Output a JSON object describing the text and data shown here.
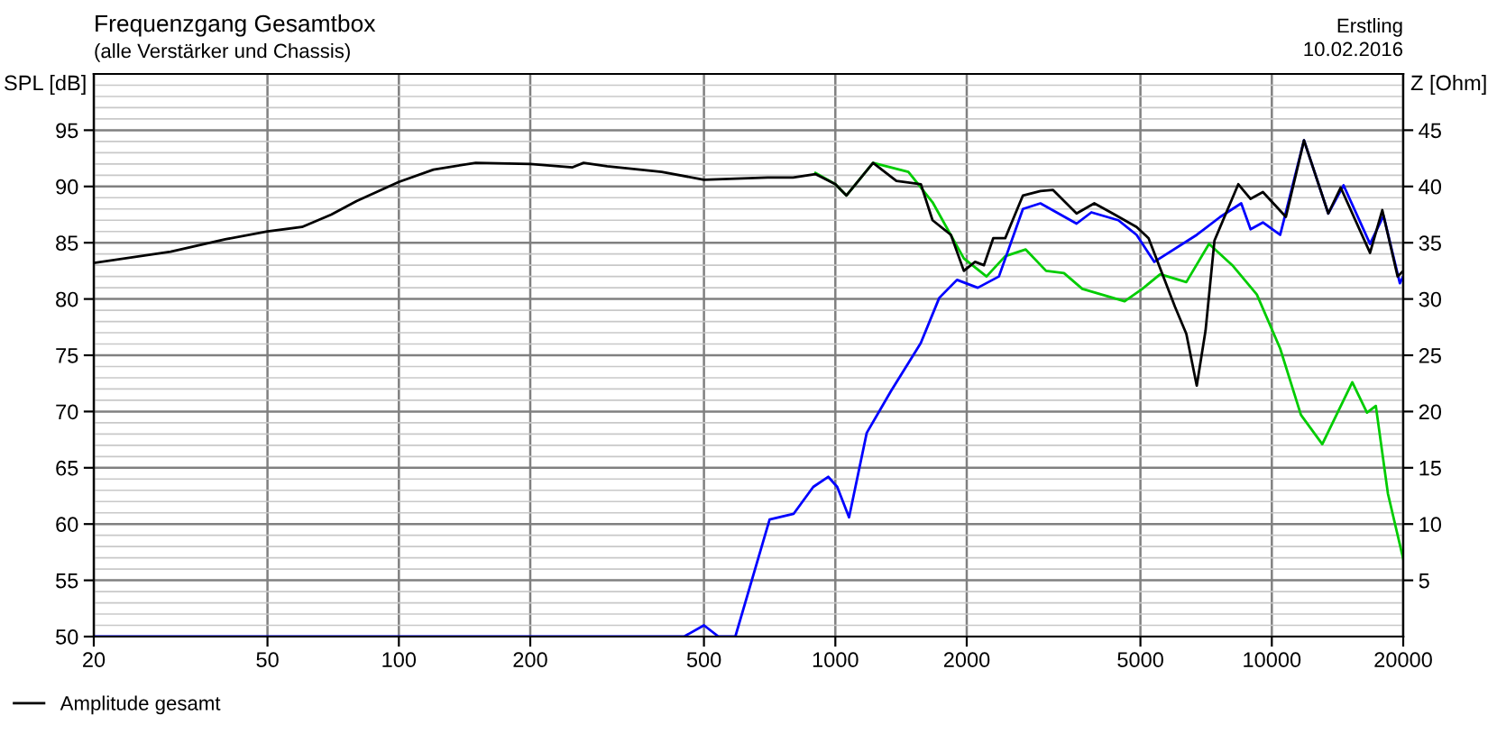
{
  "chart_data": {
    "type": "line",
    "title": "Frequenzgang Gesamtbox",
    "subtitle": "(alle Verstärker und Chassis)",
    "annotations": [
      "Erstling",
      "10.02.2016"
    ],
    "ylabel": "SPL [dB]",
    "y2label": "Z [Ohm]",
    "log": "x",
    "xlim": [
      20,
      20000
    ],
    "xticks": [
      20,
      50,
      100,
      200,
      500,
      1000,
      2000,
      5000,
      10000,
      20000
    ],
    "ylim": [
      50,
      100
    ],
    "yticks": [
      50,
      55,
      60,
      65,
      70,
      75,
      80,
      85,
      90,
      95
    ],
    "y2lim": [
      0,
      50
    ],
    "y2ticks": [
      5,
      10,
      15,
      20,
      25,
      30,
      35,
      40,
      45
    ],
    "grid": true,
    "legend": "bottom left",
    "marker": "none",
    "line_style": "solid",
    "series": [
      {
        "name": "Amplitude gesamt",
        "color": "#000000",
        "x": [
          20,
          30,
          40,
          50,
          60,
          70,
          80,
          100,
          120,
          150,
          200,
          250,
          265,
          300,
          400,
          500,
          700,
          800,
          900,
          1000,
          1060,
          1220,
          1380,
          1570,
          1670,
          1840,
          1970,
          2090,
          2190,
          2300,
          2450,
          2690,
          2950,
          3150,
          3570,
          3920,
          4320,
          4900,
          5220,
          6000,
          6370,
          6730,
          7050,
          7390,
          8380,
          8940,
          9540,
          10770,
          11850,
          13470,
          14380,
          16790,
          17910,
          19420,
          20000
        ],
        "values": [
          83.2,
          84.2,
          85.3,
          86.0,
          86.4,
          87.5,
          88.7,
          90.4,
          91.5,
          92.1,
          92.0,
          91.7,
          92.1,
          91.8,
          91.3,
          90.6,
          90.8,
          90.8,
          91.1,
          90.2,
          89.2,
          92.1,
          90.5,
          90.2,
          87.0,
          85.7,
          82.5,
          83.3,
          83.0,
          85.4,
          85.4,
          89.2,
          89.6,
          89.7,
          87.6,
          88.5,
          87.6,
          86.4,
          85.4,
          79.3,
          76.9,
          72.3,
          77.2,
          85.2,
          90.2,
          88.9,
          89.5,
          87.3,
          94.1,
          87.6,
          89.9,
          84.1,
          87.9,
          82.0,
          82.5
        ]
      },
      {
        "color": "#0000ff",
        "x": [
          20,
          450,
          500,
          540,
          590,
          707,
          802,
          890,
          963,
          1010,
          1075,
          1180,
          1340,
          1570,
          1730,
          1900,
          2120,
          2370,
          2690,
          2950,
          3570,
          3860,
          4450,
          4900,
          5380,
          6730,
          7620,
          8510,
          8940,
          9540,
          10450,
          11850,
          13470,
          14600,
          16790,
          18030,
          19650,
          20000
        ],
        "values": [
          50,
          50,
          51.0,
          50,
          50,
          60.4,
          60.9,
          63.3,
          64.2,
          63.3,
          60.6,
          68.1,
          71.8,
          76.1,
          80.1,
          81.7,
          81.0,
          82.0,
          88.0,
          88.5,
          86.7,
          87.7,
          87.0,
          85.7,
          83.3,
          85.7,
          87.3,
          88.5,
          86.2,
          86.8,
          85.7,
          94.1,
          87.6,
          90.1,
          84.9,
          87.4,
          81.4,
          82.0
        ]
      },
      {
        "color": "#00cc00",
        "x": [
          900,
          1000,
          1060,
          1220,
          1470,
          1670,
          1970,
          2220,
          2450,
          2730,
          3040,
          3340,
          3680,
          4600,
          5050,
          5550,
          6370,
          7180,
          8120,
          9240,
          10450,
          11660,
          13050,
          15290,
          16520,
          17310,
          18450,
          20000
        ],
        "values": [
          91.2,
          90.2,
          89.2,
          92.1,
          91.3,
          88.6,
          83.6,
          82.0,
          83.8,
          84.4,
          82.5,
          82.3,
          80.9,
          79.8,
          80.9,
          82.2,
          81.5,
          84.9,
          83.0,
          80.4,
          75.6,
          69.7,
          67.1,
          72.6,
          69.9,
          70.5,
          62.7,
          56.9
        ]
      }
    ]
  }
}
